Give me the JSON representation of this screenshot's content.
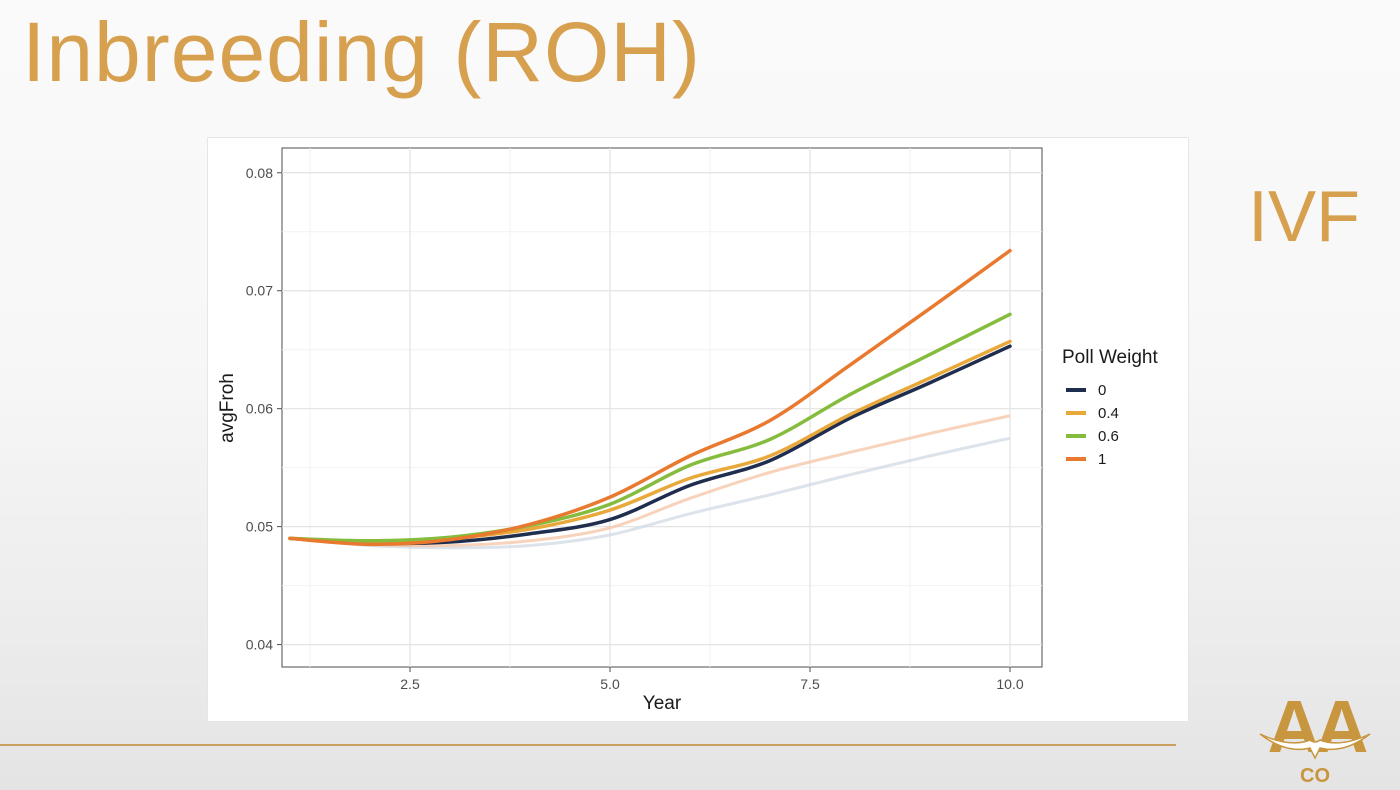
{
  "slide": {
    "title": "Inbreeding (ROH)",
    "side_label": "IVF",
    "accent_color": "#d6a04e",
    "logo": {
      "text": "AA",
      "subtext": "CO"
    }
  },
  "chart_data": {
    "type": "line",
    "xlabel": "Year",
    "ylabel": "avgFroh",
    "xlim": [
      0.9,
      10.4
    ],
    "ylim": [
      0.0381,
      0.0821
    ],
    "x_ticks": [
      2.5,
      5.0,
      7.5,
      10.0
    ],
    "x_tick_labels": [
      "2.5",
      "5.0",
      "7.5",
      "10.0"
    ],
    "y_ticks": [
      0.04,
      0.05,
      0.06,
      0.07,
      0.08
    ],
    "y_tick_labels": [
      "0.04",
      "0.05",
      "0.06",
      "0.07",
      "0.08"
    ],
    "grid": true,
    "legend": {
      "title": "Poll Weight",
      "position": "right"
    },
    "x": [
      1,
      2,
      3,
      4,
      5,
      6,
      7,
      8,
      9,
      10
    ],
    "series": [
      {
        "name": "0",
        "color": "#1f2d4e",
        "values": [
          0.049,
          0.0486,
          0.0487,
          0.0494,
          0.0506,
          0.0535,
          0.0556,
          0.0592,
          0.0622,
          0.0653
        ]
      },
      {
        "name": "0.4",
        "color": "#e8a83a",
        "values": [
          0.049,
          0.0487,
          0.049,
          0.0498,
          0.0514,
          0.0541,
          0.056,
          0.0595,
          0.0626,
          0.0657
        ]
      },
      {
        "name": "0.6",
        "color": "#86bc3e",
        "values": [
          0.049,
          0.0488,
          0.0491,
          0.0501,
          0.0519,
          0.0552,
          0.0574,
          0.0612,
          0.0646,
          0.068
        ]
      },
      {
        "name": "1",
        "color": "#e8792e",
        "values": [
          0.049,
          0.0485,
          0.0489,
          0.0502,
          0.0525,
          0.056,
          0.059,
          0.0637,
          0.0685,
          0.0734
        ]
      }
    ],
    "faded_series": [
      {
        "color": "#d0dae4",
        "values": [
          0.049,
          0.0484,
          0.0482,
          0.0484,
          0.0493,
          0.0511,
          0.0527,
          0.0544,
          0.056,
          0.0575
        ]
      },
      {
        "color": "#f5c4a6",
        "values": [
          0.049,
          0.0485,
          0.0484,
          0.0488,
          0.0499,
          0.0524,
          0.0546,
          0.0563,
          0.0579,
          0.0594
        ]
      }
    ]
  }
}
